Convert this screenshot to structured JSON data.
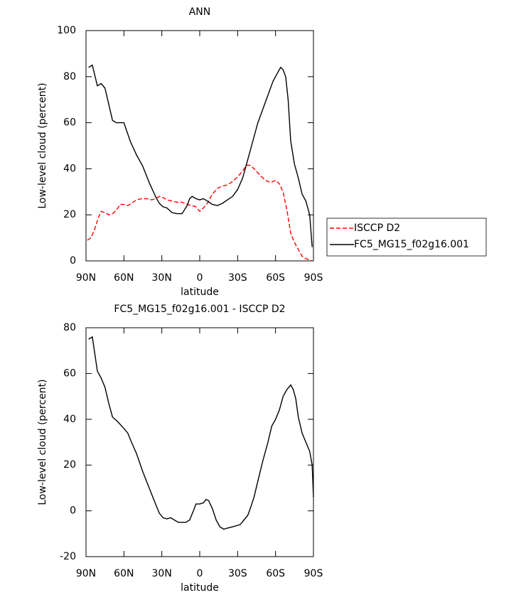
{
  "chart_data": [
    {
      "type": "line",
      "title": "ANN",
      "xlabel": "latitude",
      "ylabel": "Low-level cloud (percent)",
      "xlim": [
        90,
        -90
      ],
      "ylim": [
        0,
        100
      ],
      "xticks": [
        {
          "value": 90,
          "label": "90N"
        },
        {
          "value": 60,
          "label": "60N"
        },
        {
          "value": 30,
          "label": "30N"
        },
        0,
        {
          "value": -30,
          "label": "30S"
        },
        {
          "value": -60,
          "label": "60S"
        },
        {
          "value": -90,
          "label": "90S"
        }
      ],
      "yticks": [
        0,
        20,
        40,
        60,
        80,
        100
      ],
      "legend": "right",
      "series": [
        {
          "name": "ISCCP D2",
          "color": "#ff0000",
          "dash": true,
          "x": [
            89,
            86,
            83,
            80,
            78,
            75,
            72,
            69,
            66,
            63,
            60,
            57,
            54,
            50,
            46,
            42,
            38,
            35,
            32,
            29,
            26,
            22,
            18,
            14,
            10,
            6,
            3,
            0,
            -3,
            -6,
            -10,
            -14,
            -18,
            -22,
            -26,
            -30,
            -34,
            -37,
            -40,
            -44,
            -48,
            -52,
            -56,
            -60,
            -63,
            -66,
            -69,
            -72,
            -75,
            -78,
            -81,
            -84,
            -87,
            -89
          ],
          "values": [
            9,
            10,
            14,
            19,
            21.5,
            21,
            20,
            20.5,
            22,
            24.5,
            24.5,
            24,
            25,
            26.5,
            27,
            27,
            26.5,
            27,
            28,
            27.5,
            26.5,
            26,
            25.5,
            25.5,
            24.5,
            24,
            23.5,
            21.5,
            23,
            25,
            29,
            31.5,
            32.5,
            33,
            34.5,
            36.5,
            39,
            41.5,
            41.5,
            39.5,
            37,
            35,
            34,
            35,
            33.5,
            30,
            22,
            12,
            8,
            5,
            2,
            1,
            0.5,
            0
          ]
        },
        {
          "name": "FC5_MG15_f02g16.001",
          "color": "#000000",
          "dash": false,
          "x": [
            88,
            85,
            81,
            78,
            75,
            72,
            69,
            66,
            60,
            55,
            50,
            45,
            40,
            35,
            32,
            29,
            26,
            22,
            18,
            14,
            10,
            8,
            6,
            3,
            0,
            -3,
            -6,
            -10,
            -14,
            -18,
            -22,
            -26,
            -30,
            -34,
            -38,
            -42,
            -46,
            -50,
            -54,
            -58,
            -62,
            -64,
            -66,
            -68,
            -70,
            -72,
            -75,
            -78,
            -81,
            -84,
            -87,
            -89
          ],
          "values": [
            84,
            85,
            76,
            77,
            75,
            68,
            61,
            60,
            60,
            52,
            46,
            41,
            34,
            28,
            25,
            23.5,
            23,
            21,
            20.5,
            20.5,
            24,
            27,
            28,
            27,
            26.5,
            27,
            26,
            24.5,
            24,
            25,
            26.5,
            28,
            31,
            36,
            44,
            52,
            60,
            66,
            72,
            78,
            82,
            84,
            83,
            80,
            70,
            52,
            42,
            36,
            29,
            26,
            20,
            6
          ]
        }
      ]
    },
    {
      "type": "line",
      "title": "FC5_MG15_f02g16.001 - ISCCP D2",
      "xlabel": "latitude",
      "ylabel": "Low-level cloud (percent)",
      "xlim": [
        90,
        -90
      ],
      "ylim": [
        -20,
        80
      ],
      "xticks": [
        {
          "value": 90,
          "label": "90N"
        },
        {
          "value": 60,
          "label": "60N"
        },
        {
          "value": 30,
          "label": "30N"
        },
        0,
        {
          "value": -30,
          "label": "30S"
        },
        {
          "value": -60,
          "label": "60S"
        },
        {
          "value": -90,
          "label": "90S"
        }
      ],
      "yticks": [
        -20,
        0,
        20,
        40,
        60,
        80
      ],
      "color": "#000000",
      "x": [
        88,
        85,
        81,
        78,
        75,
        72,
        69,
        65,
        60,
        57,
        54,
        50,
        45,
        40,
        35,
        32,
        29,
        26,
        23,
        20,
        17,
        14,
        11,
        8,
        5,
        3,
        0,
        -3,
        -5,
        -7,
        -10,
        -13,
        -16,
        -19,
        -22,
        -26,
        -29,
        -32,
        -35,
        -38,
        -40,
        -43,
        -46,
        -50,
        -54,
        -57,
        -60,
        -63,
        -66,
        -69,
        -72,
        -74,
        -76,
        -78,
        -81,
        -84,
        -87,
        -89,
        -90
      ],
      "values": [
        75,
        76,
        61,
        58,
        54,
        47,
        41,
        39,
        36,
        34,
        30,
        25,
        17,
        10,
        3,
        -1,
        -3,
        -3.5,
        -3,
        -4,
        -5,
        -5,
        -5,
        -4,
        0,
        3,
        3,
        3.5,
        5,
        4.5,
        1,
        -4,
        -7,
        -8,
        -7.5,
        -7,
        -6.5,
        -6,
        -4,
        -2,
        1,
        6,
        13,
        22,
        30,
        37,
        40,
        44,
        50,
        53,
        55,
        53,
        49,
        41,
        34,
        30,
        26,
        20,
        6
      ]
    }
  ]
}
